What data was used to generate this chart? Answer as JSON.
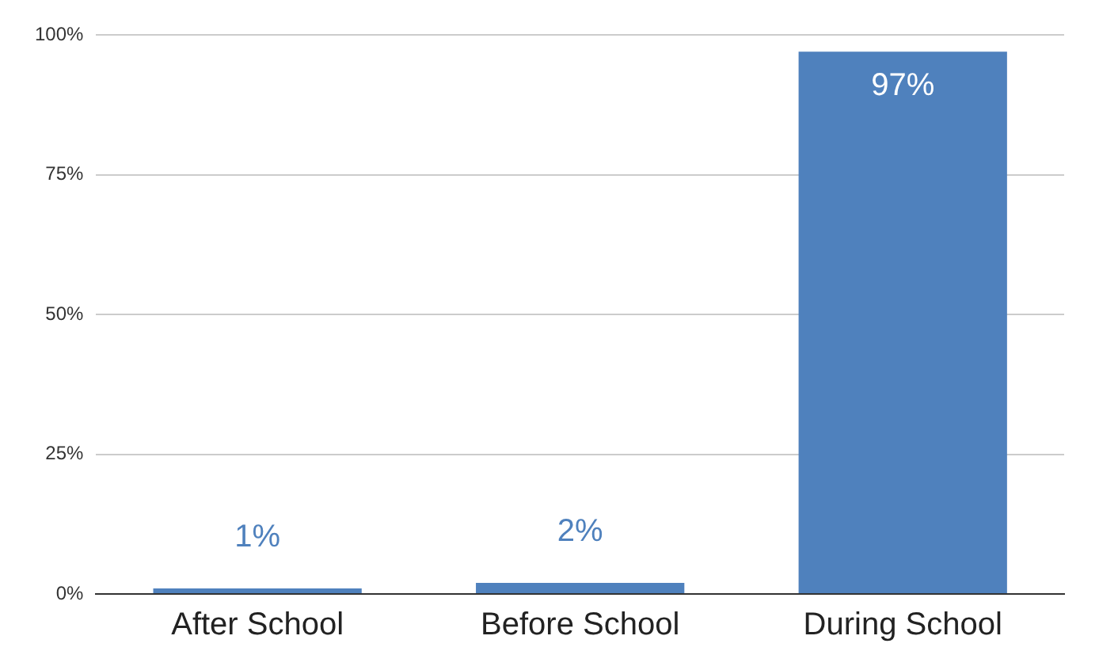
{
  "chart_data": {
    "type": "bar",
    "categories": [
      "After School",
      "Before School",
      "During School"
    ],
    "values": [
      1,
      2,
      97
    ],
    "color": "#4f81bd",
    "value_labels": [
      "1%",
      "2%",
      "97%"
    ],
    "ylim": [
      0,
      100
    ],
    "yticks": [
      {
        "value": 0,
        "label": "0%"
      },
      {
        "value": 25,
        "label": "25%"
      },
      {
        "value": 50,
        "label": "50%"
      },
      {
        "value": 75,
        "label": "75%"
      },
      {
        "value": 100,
        "label": "100%"
      }
    ],
    "grid": "y"
  }
}
